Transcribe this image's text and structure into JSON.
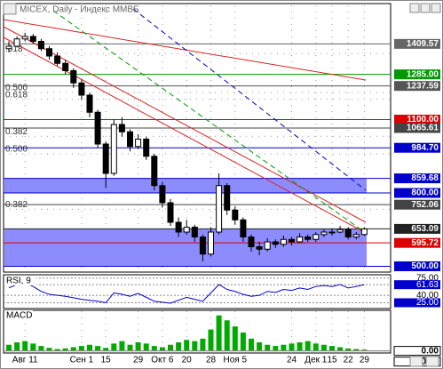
{
  "window": {
    "title": "MICEX, Daily - Индекс ММВБ"
  },
  "chart_data": {
    "type": "candlestick",
    "categories": [
      null,
      null,
      "Авг 11",
      null,
      null,
      null,
      null,
      null,
      null,
      "Сен 1",
      null,
      null,
      "15",
      null,
      null,
      null,
      "29",
      null,
      null,
      "Окт 6",
      null,
      null,
      "20",
      null,
      null,
      "28",
      null,
      null,
      "Ноя 5",
      null,
      null,
      null,
      null,
      null,
      null,
      "24",
      null,
      null,
      "Дек 1",
      null,
      "15",
      null,
      "22",
      null,
      "29"
    ],
    "open": [
      1390,
      1400,
      1430,
      1440,
      1420,
      1390,
      1360,
      1330,
      1300,
      1250,
      1200,
      1130,
      1000,
      880,
      1080,
      1050,
      990,
      1020,
      950,
      830,
      760,
      680,
      640,
      660,
      620,
      550,
      640,
      830,
      730,
      690,
      620,
      580,
      570,
      600,
      590,
      610,
      600,
      620,
      610,
      630,
      640,
      640,
      650,
      620,
      630
    ],
    "high": [
      1420,
      1440,
      1455,
      1450,
      1430,
      1400,
      1375,
      1345,
      1310,
      1265,
      1210,
      1140,
      1010,
      1100,
      1110,
      1060,
      1040,
      1030,
      960,
      845,
      775,
      700,
      690,
      670,
      630,
      660,
      880,
      840,
      745,
      700,
      630,
      600,
      615,
      610,
      625,
      620,
      635,
      630,
      640,
      650,
      655,
      665,
      660,
      640,
      660
    ],
    "low": [
      1375,
      1395,
      1420,
      1410,
      1380,
      1345,
      1320,
      1285,
      1230,
      1180,
      1110,
      985,
      820,
      870,
      1030,
      970,
      980,
      935,
      810,
      740,
      665,
      620,
      630,
      600,
      520,
      540,
      630,
      710,
      670,
      600,
      560,
      545,
      560,
      575,
      580,
      585,
      595,
      600,
      600,
      620,
      625,
      635,
      610,
      610,
      625
    ],
    "close": [
      1400,
      1430,
      1440,
      1420,
      1390,
      1360,
      1330,
      1300,
      1250,
      1200,
      1130,
      1000,
      880,
      1080,
      1050,
      990,
      1020,
      950,
      830,
      760,
      680,
      640,
      660,
      620,
      550,
      640,
      830,
      730,
      690,
      620,
      580,
      570,
      600,
      590,
      610,
      600,
      620,
      610,
      630,
      640,
      640,
      650,
      620,
      630,
      653
    ],
    "up_color": "#ffffff",
    "down_color": "#000000",
    "ylim": [
      480,
      1560
    ],
    "levels": [
      1409.57,
      {
        "value": 1285,
        "label": "1285.00"
      },
      1237.59,
      {
        "value": 1100,
        "label": "1100.00"
      },
      1065.61,
      {
        "value": 984.7,
        "label": "984.70"
      },
      859.68,
      {
        "value": 800,
        "label": "800.00"
      },
      752.06,
      653.09,
      595.72,
      {
        "value": 500,
        "label": "500.00"
      }
    ],
    "level_colors": [
      "#666666",
      "#009900",
      "#555555",
      "#dd0000",
      "#444444",
      "#0000cc",
      "#0000cc",
      "#0000cc",
      "#444444",
      "#222222",
      "#dd0000",
      "#0000cc"
    ],
    "bands": [
      [
        800,
        859.68
      ],
      [
        500,
        653.09
      ]
    ],
    "band_color": "#8c8cff",
    "fib_levels": [
      {
        "value": 1370,
        "label": ".618"
      },
      {
        "value": 1211,
        "label": "0.500"
      },
      {
        "value": 1183,
        "label": "0.618"
      },
      {
        "value": 1032,
        "label": "0.382"
      },
      {
        "value": 960,
        "label": "0.500"
      },
      {
        "value": 733,
        "label": "0.382"
      }
    ],
    "rsi": {
      "title": "RSI, 9",
      "color": "#0000cc",
      "values": [
        55,
        62,
        65,
        58,
        48,
        42,
        40,
        38,
        35,
        32,
        30,
        28,
        25,
        45,
        42,
        38,
        44,
        36,
        28,
        26,
        24,
        30,
        36,
        32,
        28,
        45,
        62,
        52,
        48,
        42,
        38,
        40,
        48,
        46,
        52,
        50,
        55,
        52,
        58,
        60,
        58,
        62,
        55,
        58,
        61.63
      ],
      "ylim": [
        15,
        80
      ],
      "ticks": [
        {
          "value": 75,
          "label": "75.00"
        },
        61.63,
        {
          "value": 40,
          "label": "40.00"
        },
        {
          "value": 25,
          "label": "25.00"
        }
      ]
    },
    "macd": {
      "title": "MACD",
      "color": "#00aa00",
      "values": [
        10,
        14,
        16,
        12,
        8,
        5,
        3,
        4,
        6,
        8,
        10,
        8,
        5,
        12,
        16,
        10,
        14,
        12,
        8,
        6,
        10,
        14,
        18,
        16,
        20,
        35,
        58,
        50,
        40,
        30,
        20,
        14,
        10,
        8,
        10,
        12,
        14,
        16,
        12,
        10,
        8,
        6,
        4,
        3,
        2
      ],
      "ylim": [
        -2,
        62
      ],
      "ticks": [
        {
          "value": 0,
          "label": "0.00"
        },
        {
          "value": 0,
          "label": "0.00"
        }
      ]
    }
  }
}
